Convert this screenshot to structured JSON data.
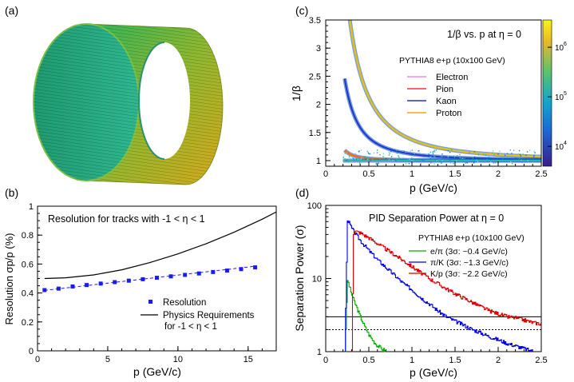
{
  "panels": {
    "a": {
      "label": "(a)",
      "description_icon": "barrel-detector-icon"
    },
    "b": {
      "label": "(b)"
    },
    "c": {
      "label": "(c)"
    },
    "d": {
      "label": "(d)"
    }
  },
  "chart_data": [
    {
      "id": "b",
      "type": "line",
      "annotation": "Resolution for tracks with -1 < η < 1",
      "xlabel": "p (GeV/c)",
      "ylabel": "Resolution σp/p (%)",
      "xlim": [
        0,
        17
      ],
      "ylim": [
        0,
        1
      ],
      "xticks": [
        0,
        5,
        10,
        15
      ],
      "yticks": [
        0,
        0.2,
        0.4,
        0.6,
        0.8,
        1
      ],
      "ytick_labels": [
        "0",
        "0.2",
        "0.4",
        "0.6",
        "0.8",
        "1"
      ],
      "legend": [
        {
          "label": "Resolution",
          "style": "square-marker",
          "color": "#1a1aff"
        },
        {
          "label": "Physics Requirements",
          "style": "line",
          "color": "#000000"
        },
        {
          "label": "for  -1 < η < 1",
          "style": "none",
          "color": "#000000"
        }
      ],
      "series": [
        {
          "name": "Resolution",
          "color": "#1a1aff",
          "x": [
            0.5,
            1.5,
            2.5,
            3.5,
            4.5,
            5.5,
            6.5,
            7.5,
            8.5,
            9.5,
            10.5,
            11.5,
            12.5,
            13.5,
            14.5,
            15.5
          ],
          "y": [
            0.42,
            0.43,
            0.445,
            0.455,
            0.465,
            0.475,
            0.485,
            0.495,
            0.505,
            0.515,
            0.525,
            0.535,
            0.545,
            0.555,
            0.565,
            0.577
          ]
        },
        {
          "name": "Physics Requirements",
          "color": "#000000",
          "x": [
            0.5,
            2,
            4,
            6,
            8,
            10,
            12,
            14,
            16,
            17
          ],
          "y": [
            0.5,
            0.505,
            0.525,
            0.56,
            0.61,
            0.67,
            0.74,
            0.82,
            0.91,
            0.96
          ]
        },
        {
          "name": "Resolution fit",
          "color": "#1a1aff",
          "x": [
            0.5,
            15.5
          ],
          "y": [
            0.418,
            0.585
          ]
        }
      ]
    },
    {
      "id": "c",
      "type": "heatmap",
      "annotation": "1/β vs. p at η = 0",
      "generator": "PYTHIA8 e+p (10x100 GeV)",
      "xlabel": "p (GeV/c)",
      "ylabel": "1/β",
      "xlim": [
        0,
        2.5
      ],
      "ylim": [
        0.9,
        3.5
      ],
      "xticks": [
        0,
        0.5,
        1,
        1.5,
        2,
        2.5
      ],
      "yticks": [
        1,
        1.5,
        2,
        2.5,
        3,
        3.5
      ],
      "ytick_labels": [
        "1",
        "1.5",
        "2",
        "2.5",
        "3",
        "3.5"
      ],
      "colorbar_ticks": [
        {
          "base": "10",
          "exp": "4",
          "value": 10000
        },
        {
          "base": "10",
          "exp": "5",
          "value": 100000
        },
        {
          "base": "10",
          "exp": "6",
          "value": 1000000
        }
      ],
      "legend": [
        {
          "label": "Electron",
          "color": "#ee88ee"
        },
        {
          "label": "Pion",
          "color": "#ff3333"
        },
        {
          "label": "Kaon",
          "color": "#2233cc"
        },
        {
          "label": "Proton",
          "color": "#ffa500"
        }
      ],
      "bands": [
        {
          "name": "Proton",
          "mass": 0.938,
          "p_start": 0.25,
          "color": "#e5c400"
        },
        {
          "name": "Kaon",
          "mass": 0.494,
          "p_start": 0.22,
          "color": "#1a3fcc"
        },
        {
          "name": "Pion",
          "mass": 0.1396,
          "p_start": 0.22,
          "color": "#ff6a00"
        },
        {
          "name": "Electron",
          "mass": 0.000511,
          "p_start": 0.2,
          "color": "#22bbaa"
        }
      ]
    },
    {
      "id": "d",
      "type": "line",
      "annotation": "PID Separation Power at η = 0",
      "generator": "PYTHIA8 e+p (10x100 GeV)",
      "xlabel": "p (GeV/c)",
      "ylabel": "Separation Power (σ)",
      "xlim": [
        0,
        2.5
      ],
      "ylim": [
        1,
        100
      ],
      "yscale": "log",
      "xticks": [
        0,
        0.5,
        1,
        1.5,
        2,
        2.5
      ],
      "yticks": [
        1,
        10,
        100
      ],
      "ytick_labels": [
        "1",
        "10",
        "100"
      ],
      "threshold_lines": [
        {
          "y": 3,
          "style": "solid"
        },
        {
          "y": 2,
          "style": "dotted"
        }
      ],
      "legend": [
        {
          "label": "e/π (3σ: ~0.4 GeV/c)",
          "color": "#00aa00"
        },
        {
          "label": "π/K (3σ: ~1.3 GeV/c)",
          "color": "#0000ee"
        },
        {
          "label": "K/p (3σ: ~2.2 GeV/c)",
          "color": "#dd0000"
        }
      ],
      "series": [
        {
          "name": "e/π",
          "color": "#00aa00",
          "x": [
            0.22,
            0.25,
            0.3,
            0.35,
            0.4,
            0.45,
            0.5,
            0.55,
            0.6,
            0.65,
            0.7
          ],
          "y": [
            1,
            9.5,
            6,
            4.2,
            3.0,
            2.2,
            1.7,
            1.4,
            1.2,
            1.1,
            1.0
          ]
        },
        {
          "name": "π/K",
          "color": "#0000ee",
          "x": [
            0.22,
            0.25,
            0.3,
            0.4,
            0.5,
            0.6,
            0.7,
            0.8,
            0.9,
            1.0,
            1.1,
            1.2,
            1.3,
            1.4,
            1.5,
            1.6,
            1.7,
            1.8,
            1.9,
            2.0,
            2.1,
            2.2,
            2.3,
            2.35,
            2.4
          ],
          "y": [
            1,
            65,
            48,
            33,
            24,
            18,
            14,
            11,
            8.5,
            7,
            5.5,
            4.5,
            3.6,
            3.0,
            2.6,
            2.3,
            2.0,
            1.8,
            1.6,
            1.45,
            1.3,
            1.2,
            1.1,
            1.05,
            1.0
          ]
        },
        {
          "name": "K/p",
          "color": "#dd0000",
          "x": [
            0.3,
            0.32,
            0.35,
            0.4,
            0.5,
            0.6,
            0.7,
            0.8,
            0.9,
            1.0,
            1.1,
            1.2,
            1.3,
            1.4,
            1.5,
            1.6,
            1.7,
            1.8,
            1.9,
            2.0,
            2.1,
            2.2,
            2.3,
            2.4,
            2.5
          ],
          "y": [
            1,
            42,
            44,
            42,
            36,
            30,
            25,
            21,
            17.5,
            14.5,
            12,
            10,
            8.5,
            7.2,
            6.2,
            5.4,
            4.7,
            4.1,
            3.6,
            3.3,
            3.0,
            2.9,
            2.7,
            2.5,
            2.4
          ]
        }
      ]
    }
  ]
}
